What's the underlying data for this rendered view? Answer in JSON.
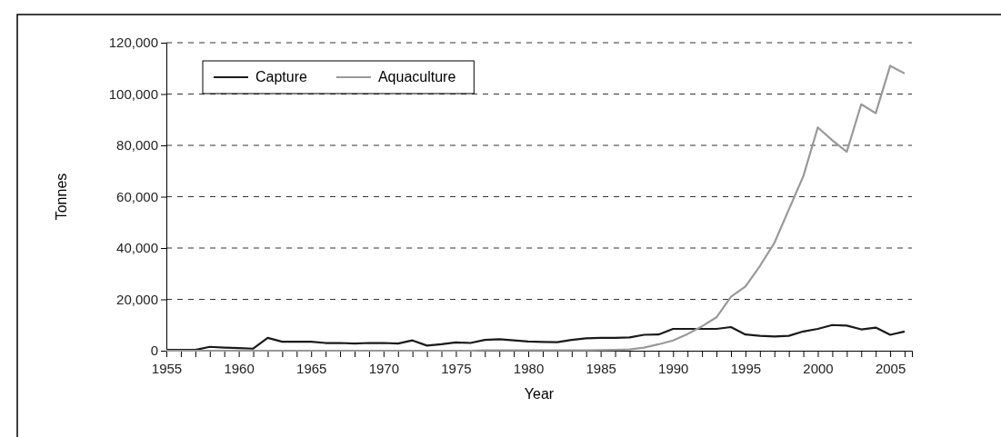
{
  "chart_data": {
    "type": "line",
    "xlabel": "Year",
    "ylabel": "Tonnes",
    "x": [
      1955,
      1956,
      1957,
      1958,
      1959,
      1960,
      1961,
      1962,
      1963,
      1964,
      1965,
      1966,
      1967,
      1968,
      1969,
      1970,
      1971,
      1972,
      1973,
      1974,
      1975,
      1976,
      1977,
      1978,
      1979,
      1980,
      1981,
      1982,
      1983,
      1984,
      1985,
      1986,
      1987,
      1988,
      1989,
      1990,
      1991,
      1992,
      1993,
      1994,
      1995,
      1996,
      1997,
      1998,
      1999,
      2000,
      2001,
      2002,
      2003,
      2004,
      2005,
      2006
    ],
    "series": [
      {
        "name": "Capture",
        "color": "#1a1a1a",
        "values": [
          300,
          300,
          300,
          1500,
          1200,
          1000,
          800,
          5000,
          3500,
          3500,
          3500,
          3000,
          3000,
          2800,
          3000,
          3000,
          2800,
          4000,
          2000,
          2500,
          3200,
          3000,
          4200,
          4500,
          4000,
          3600,
          3400,
          3300,
          4200,
          4800,
          5000,
          5000,
          5200,
          6200,
          6300,
          8500,
          8500,
          8500,
          8500,
          9200,
          6300,
          5800,
          5500,
          5800,
          7500,
          8500,
          10000,
          9800,
          8300,
          9000,
          6200,
          7500
        ]
      },
      {
        "name": "Aquaculture",
        "color": "#999999",
        "values": [
          0,
          0,
          0,
          0,
          0,
          0,
          0,
          0,
          0,
          0,
          0,
          0,
          0,
          0,
          0,
          0,
          0,
          0,
          0,
          0,
          0,
          0,
          100,
          100,
          100,
          100,
          100,
          100,
          100,
          100,
          200,
          300,
          500,
          1200,
          2500,
          4000,
          6500,
          9500,
          13000,
          21000,
          25000,
          33000,
          42000,
          55000,
          68000,
          87000,
          82000,
          77500,
          96000,
          92500,
          111000,
          108000
        ]
      }
    ],
    "xlim": [
      1955,
      2006.5
    ],
    "xticks": [
      1955,
      {
        "value": 1956,
        "label": null
      },
      {
        "value": 1957,
        "label": null
      },
      {
        "value": 1958,
        "label": null
      },
      {
        "value": 1959,
        "label": null
      },
      1960,
      {
        "value": 1961,
        "label": null
      },
      {
        "value": 1962,
        "label": null
      },
      {
        "value": 1963,
        "label": null
      },
      {
        "value": 1964,
        "label": null
      },
      1965,
      {
        "value": 1966,
        "label": null
      },
      {
        "value": 1967,
        "label": null
      },
      {
        "value": 1968,
        "label": null
      },
      {
        "value": 1969,
        "label": null
      },
      1970,
      {
        "value": 1971,
        "label": null
      },
      {
        "value": 1972,
        "label": null
      },
      {
        "value": 1973,
        "label": null
      },
      {
        "value": 1974,
        "label": null
      },
      1975,
      {
        "value": 1976,
        "label": null
      },
      {
        "value": 1977,
        "label": null
      },
      {
        "value": 1978,
        "label": null
      },
      {
        "value": 1979,
        "label": null
      },
      1980,
      {
        "value": 1981,
        "label": null
      },
      {
        "value": 1982,
        "label": null
      },
      {
        "value": 1983,
        "label": null
      },
      {
        "value": 1984,
        "label": null
      },
      1985,
      {
        "value": 1986,
        "label": null
      },
      {
        "value": 1987,
        "label": null
      },
      {
        "value": 1988,
        "label": null
      },
      {
        "value": 1989,
        "label": null
      },
      1990,
      {
        "value": 1991,
        "label": null
      },
      {
        "value": 1992,
        "label": null
      },
      {
        "value": 1993,
        "label": null
      },
      {
        "value": 1994,
        "label": null
      },
      1995,
      {
        "value": 1996,
        "label": null
      },
      {
        "value": 1997,
        "label": null
      },
      {
        "value": 1998,
        "label": null
      },
      {
        "value": 1999,
        "label": null
      },
      2000,
      {
        "value": 2001,
        "label": null
      },
      {
        "value": 2002,
        "label": null
      },
      {
        "value": 2003,
        "label": null
      },
      {
        "value": 2004,
        "label": null
      },
      2005,
      {
        "value": 2006,
        "label": null
      }
    ],
    "ylim": [
      0,
      120000
    ],
    "yticks": [
      {
        "value": 0,
        "label": "0"
      },
      {
        "value": 20000,
        "label": "20,000"
      },
      {
        "value": 40000,
        "label": "40,000"
      },
      {
        "value": 60000,
        "label": "60,000"
      },
      {
        "value": 80000,
        "label": "80,000"
      },
      {
        "value": 100000,
        "label": "100,000"
      },
      {
        "value": 120000,
        "label": "120,000"
      }
    ],
    "grid": "y",
    "legend": "top left",
    "marker": "none",
    "line_style": "solid"
  }
}
